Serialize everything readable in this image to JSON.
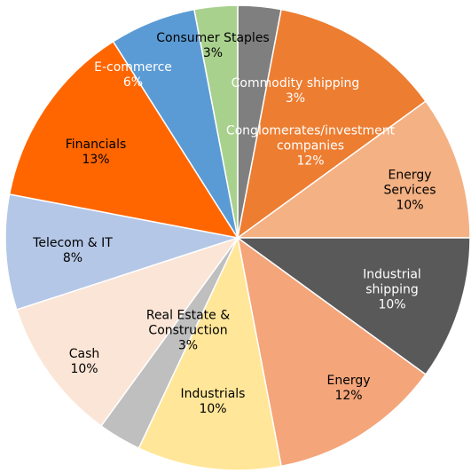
{
  "chart_data": {
    "type": "pie",
    "categories": [
      "Commodity shipping",
      "Conglomerates/investment companies",
      "Energy Services",
      "Industrial shipping",
      "Energy",
      "Industrials",
      "Real Estate & Construction",
      "Cash",
      "Telecom & IT",
      "Financials",
      "E-commerce",
      "Consumer Staples"
    ],
    "values": [
      3,
      12,
      10,
      10,
      12,
      10,
      3,
      10,
      8,
      13,
      6,
      3
    ],
    "value_labels": [
      "3%",
      "12%",
      "10%",
      "10%",
      "12%",
      "10%",
      "3%",
      "10%",
      "8%",
      "13%",
      "6%",
      "3%"
    ],
    "colors": [
      "#7f7f7f",
      "#ed7d31",
      "#f4b183",
      "#595959",
      "#f4a57a",
      "#ffe699",
      "#bfbfbf",
      "#fbe5d6",
      "#b4c7e7",
      "#ff6600",
      "#5b9bd5",
      "#a9d18e"
    ]
  }
}
